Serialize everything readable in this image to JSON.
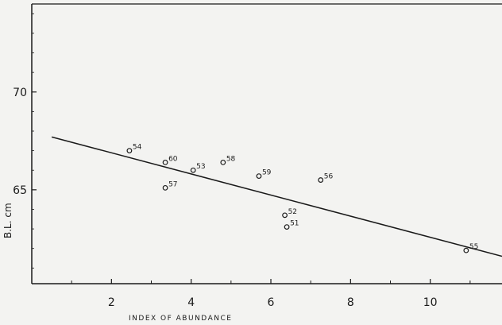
{
  "chart_data": {
    "type": "scatter",
    "title": "",
    "xlabel": "INDEX OF ABUNDANCE",
    "ylabel": "B.L. cm",
    "xlim": [
      0,
      11.8
    ],
    "ylim": [
      60.2,
      74.5
    ],
    "grid": false,
    "xticks": [
      {
        "value": 2,
        "label": "2"
      },
      {
        "value": 4,
        "label": "4"
      },
      {
        "value": 6,
        "label": "6"
      },
      {
        "value": 8,
        "label": "8"
      },
      {
        "value": 10,
        "label": "10"
      }
    ],
    "yticks": [
      {
        "value": 65,
        "label": "65"
      },
      {
        "value": 70,
        "label": "70"
      }
    ],
    "points": [
      {
        "label": "54",
        "x": 2.45,
        "y": 67.0
      },
      {
        "label": "60",
        "x": 3.35,
        "y": 66.4
      },
      {
        "label": "53",
        "x": 4.05,
        "y": 66.0
      },
      {
        "label": "58",
        "x": 4.8,
        "y": 66.4
      },
      {
        "label": "57",
        "x": 3.35,
        "y": 65.1
      },
      {
        "label": "59",
        "x": 5.7,
        "y": 65.7
      },
      {
        "label": "56",
        "x": 7.25,
        "y": 65.5
      },
      {
        "label": "52",
        "x": 6.35,
        "y": 63.7
      },
      {
        "label": "51",
        "x": 6.4,
        "y": 63.1
      },
      {
        "label": "55",
        "x": 10.9,
        "y": 61.9
      }
    ],
    "regression_line": {
      "x": [
        0.5,
        11.8
      ],
      "y": [
        67.7,
        61.6
      ]
    }
  }
}
